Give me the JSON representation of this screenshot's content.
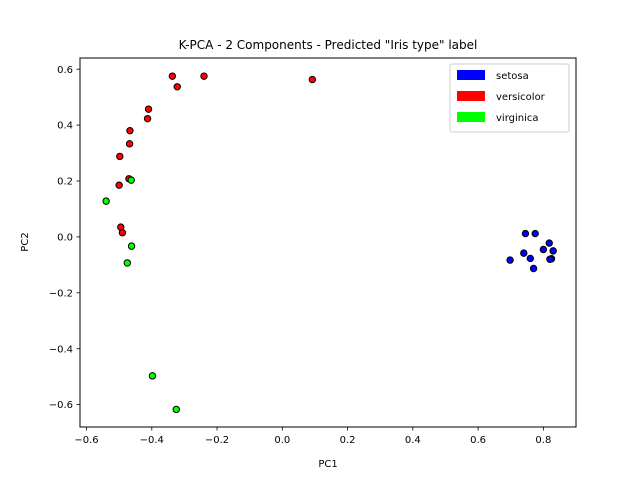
{
  "chart_data": {
    "type": "scatter",
    "title": "K-PCA - 2 Components - Predicted \"Iris type\" label",
    "xlabel": "PC1",
    "ylabel": "PC2",
    "xlim": [
      -0.62,
      0.9
    ],
    "ylim": [
      -0.68,
      0.64
    ],
    "xticks": [
      -0.6,
      -0.4,
      -0.2,
      0.0,
      0.2,
      0.4,
      0.6,
      0.8
    ],
    "yticks": [
      -0.6,
      -0.4,
      -0.2,
      0.0,
      0.2,
      0.4,
      0.6
    ],
    "xtick_labels": [
      "−0.6",
      "−0.4",
      "−0.2",
      "0.0",
      "0.2",
      "0.4",
      "0.6",
      "0.8"
    ],
    "ytick_labels": [
      "−0.6",
      "−0.4",
      "−0.2",
      "0.0",
      "0.2",
      "0.4",
      "0.6"
    ],
    "grid": false,
    "legend_position": "top-right",
    "series": [
      {
        "name": "setosa",
        "color": "#0000ff",
        "points": [
          [
            0.745,
            0.012
          ],
          [
            0.775,
            0.012
          ],
          [
            0.74,
            -0.058
          ],
          [
            0.8,
            -0.045
          ],
          [
            0.818,
            -0.022
          ],
          [
            0.83,
            -0.05
          ],
          [
            0.76,
            -0.077
          ],
          [
            0.698,
            -0.083
          ],
          [
            0.825,
            -0.078
          ],
          [
            0.82,
            -0.08
          ],
          [
            0.77,
            -0.113
          ]
        ]
      },
      {
        "name": "versicolor",
        "color": "#ff0000",
        "points": [
          [
            -0.337,
            0.575
          ],
          [
            -0.24,
            0.575
          ],
          [
            -0.322,
            0.537
          ],
          [
            0.092,
            0.563
          ],
          [
            -0.41,
            0.457
          ],
          [
            -0.413,
            0.423
          ],
          [
            -0.467,
            0.38
          ],
          [
            -0.468,
            0.333
          ],
          [
            -0.498,
            0.288
          ],
          [
            -0.47,
            0.208
          ],
          [
            -0.5,
            0.185
          ],
          [
            -0.495,
            0.035
          ],
          [
            -0.49,
            0.015
          ]
        ]
      },
      {
        "name": "virginica",
        "color": "#00ff00",
        "points": [
          [
            -0.463,
            0.203
          ],
          [
            -0.54,
            0.128
          ],
          [
            -0.462,
            -0.033
          ],
          [
            -0.475,
            -0.093
          ],
          [
            -0.398,
            -0.497
          ],
          [
            -0.325,
            -0.617
          ]
        ]
      }
    ]
  }
}
